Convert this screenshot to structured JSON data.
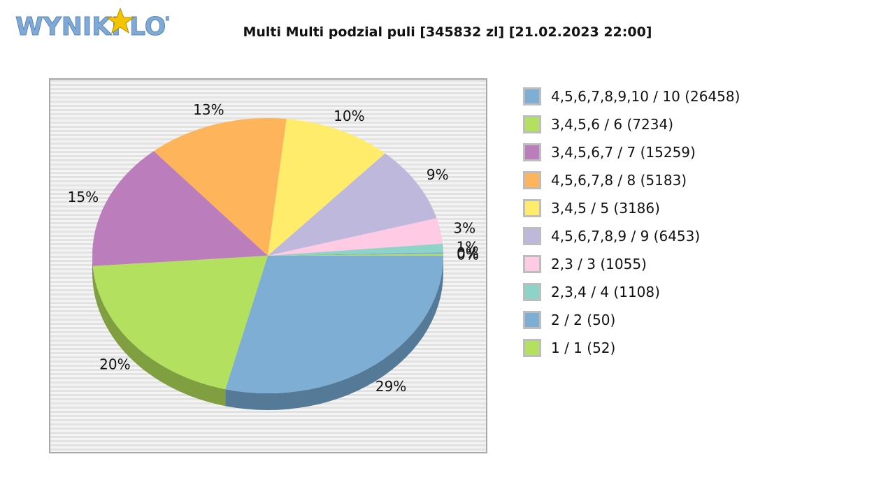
{
  "logo": {
    "text": "WYNIKI LOTTO",
    "text_color": "#7fa9d6",
    "star_color": "#f5c400"
  },
  "chart_data": {
    "type": "pie",
    "title": "Multi Multi podzial puli [345832 zl] [21.02.2023 22:00]",
    "legend_position": "right",
    "grid": true,
    "slices": [
      {
        "label": "4,5,6,7,8,9,10 / 10 (26458)",
        "value": 29,
        "display": "29%",
        "color": "#7eaed4",
        "shade": "#557a98"
      },
      {
        "label": "3,4,5,6 / 6 (7234)",
        "value": 20,
        "display": "20%",
        "color": "#b3e05e",
        "shade": "#7f9f40"
      },
      {
        "label": "3,4,5,6,7 / 7 (15259)",
        "value": 15,
        "display": "15%",
        "color": "#bc7dbc",
        "shade": "#8a5a8a"
      },
      {
        "label": "4,5,6,7,8 / 8 (5183)",
        "value": 13,
        "display": "13%",
        "color": "#fdb45a",
        "shade": "#b9803c"
      },
      {
        "label": "3,4,5 / 5 (3186)",
        "value": 10,
        "display": "10%",
        "color": "#ffec6a",
        "shade": "#bfb04c"
      },
      {
        "label": "4,5,6,7,8,9 / 9 (6453)",
        "value": 9,
        "display": "9%",
        "color": "#beb9dc",
        "shade": "#8c88a6"
      },
      {
        "label": "2,3 / 3 (1055)",
        "value": 3,
        "display": "3%",
        "color": "#ffcae4",
        "shade": "#bf97aa"
      },
      {
        "label": "2,3,4 / 4 (1108)",
        "value": 1,
        "display": "1%",
        "color": "#8ed3c8",
        "shade": "#669a91"
      },
      {
        "label": "2 / 2 (50)",
        "value": 0.2,
        "display": "0%",
        "color": "#7eaed4",
        "shade": "#557a98"
      },
      {
        "label": "1 / 1 (52)",
        "value": 0.2,
        "display": "0%",
        "color": "#b3e05e",
        "shade": "#7f9f40"
      }
    ]
  }
}
